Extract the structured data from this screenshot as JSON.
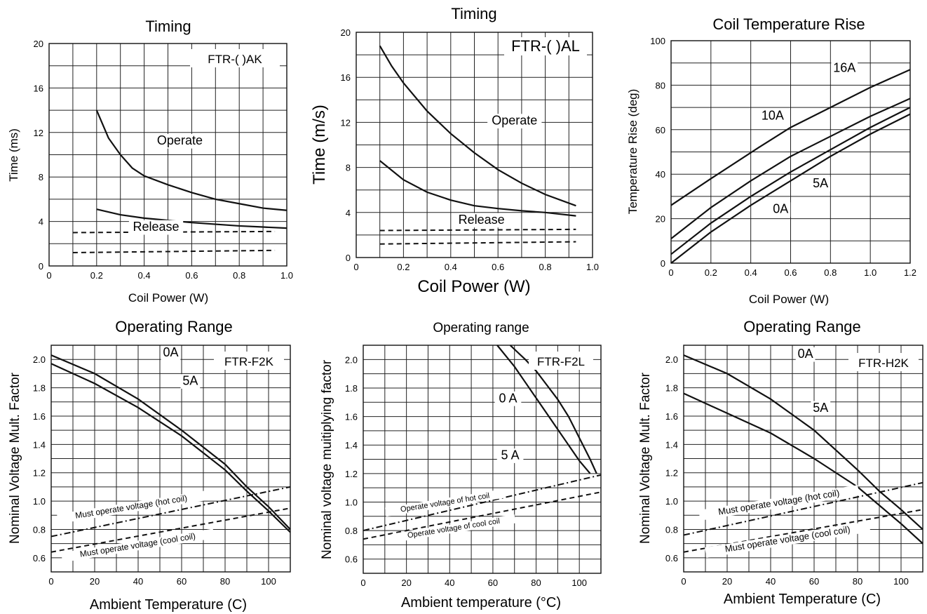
{
  "charts": [
    {
      "type": "line",
      "title": "Timing",
      "xlabel": "Coil Power (W)",
      "ylabel": "Time (ms)",
      "xlim": [
        0,
        1.0
      ],
      "ylim": [
        0,
        20
      ],
      "xticks": [
        "0",
        "0.2",
        "0.4",
        "0.6",
        "0.8",
        "1.0"
      ],
      "yticks": [
        "0",
        "4",
        "8",
        "12",
        "16",
        "20"
      ],
      "model": "FTR-( )AK",
      "grid": true,
      "series": [
        {
          "style": "solid",
          "x": [
            0.2,
            0.25,
            0.3,
            0.35,
            0.4,
            0.5,
            0.6,
            0.7,
            0.8,
            0.9,
            1.0
          ],
          "y": [
            14,
            11.5,
            10,
            8.8,
            8.1,
            7.3,
            6.6,
            6.0,
            5.6,
            5.2,
            5.0
          ]
        },
        {
          "style": "solid",
          "x": [
            0.2,
            0.3,
            0.4,
            0.5,
            0.6,
            0.7,
            0.8,
            0.9,
            1.0
          ],
          "y": [
            5.1,
            4.6,
            4.3,
            4.1,
            3.9,
            3.75,
            3.6,
            3.5,
            3.4
          ]
        },
        {
          "style": "dashed",
          "x": [
            0.1,
            0.95
          ],
          "y": [
            3.0,
            3.1
          ]
        },
        {
          "style": "dashed",
          "x": [
            0.1,
            0.95
          ],
          "y": [
            1.2,
            1.4
          ]
        }
      ],
      "labels": [
        {
          "id": "operate",
          "text": "Operate",
          "x": 0.55,
          "y": 10.9
        },
        {
          "id": "release",
          "text": "Release",
          "x": 0.45,
          "y": 3.15
        }
      ]
    },
    {
      "type": "line",
      "title": "Timing",
      "xlabel": "Coil Power (W)",
      "ylabel": "Time (m/s)",
      "xlim": [
        0,
        1.0
      ],
      "ylim": [
        0,
        20
      ],
      "xticks": [
        "0",
        "0.2",
        "0.4",
        "0.6",
        "0.8",
        "1.0"
      ],
      "yticks": [
        "0",
        "4",
        "8",
        "12",
        "16",
        "20"
      ],
      "model": "FTR-( )AL",
      "grid": true,
      "series": [
        {
          "style": "solid",
          "x": [
            0.1,
            0.15,
            0.2,
            0.3,
            0.4,
            0.5,
            0.6,
            0.7,
            0.8,
            0.93
          ],
          "y": [
            18.8,
            17.0,
            15.5,
            13.0,
            11.0,
            9.3,
            7.8,
            6.6,
            5.6,
            4.6
          ]
        },
        {
          "style": "solid",
          "x": [
            0.1,
            0.2,
            0.3,
            0.4,
            0.5,
            0.6,
            0.7,
            0.8,
            0.93
          ],
          "y": [
            8.6,
            6.9,
            5.8,
            5.1,
            4.6,
            4.35,
            4.15,
            4.0,
            3.7
          ]
        },
        {
          "style": "dashed",
          "x": [
            0.1,
            0.93
          ],
          "y": [
            2.4,
            2.5
          ]
        },
        {
          "style": "dashed",
          "x": [
            0.1,
            0.93
          ],
          "y": [
            1.2,
            1.4
          ]
        }
      ],
      "labels": [
        {
          "id": "operate",
          "text": "Operate",
          "x": 0.67,
          "y": 11.8
        },
        {
          "id": "release",
          "text": "Release",
          "x": 0.53,
          "y": 3.0
        }
      ]
    },
    {
      "type": "line",
      "title": "Coil Temperature Rise",
      "xlabel": "Coil Power (W)",
      "ylabel": "Temperature Rise (deg)",
      "xlim": [
        0,
        1.2
      ],
      "ylim": [
        0,
        100
      ],
      "xticks": [
        "0",
        "0.2",
        "0.4",
        "0.6",
        "0.8",
        "1.0",
        "1.2"
      ],
      "yticks": [
        "0",
        "20",
        "40",
        "60",
        "80",
        "100"
      ],
      "grid": true,
      "series": [
        {
          "name": "16A",
          "style": "solid",
          "x": [
            0,
            0.2,
            0.44,
            0.6,
            0.8,
            1.0,
            1.2
          ],
          "y": [
            26,
            38,
            52,
            61,
            70,
            79,
            87
          ]
        },
        {
          "name": "10A",
          "style": "solid",
          "x": [
            0,
            0.2,
            0.4,
            0.6,
            0.8,
            1.0,
            1.2
          ],
          "y": [
            11,
            25,
            37,
            48,
            57,
            66,
            74
          ]
        },
        {
          "name": "5A",
          "style": "solid",
          "x": [
            0,
            0.2,
            0.4,
            0.6,
            0.8,
            1.0,
            1.2
          ],
          "y": [
            4,
            18,
            30,
            41,
            51,
            61,
            70
          ]
        },
        {
          "name": "0A",
          "style": "solid",
          "x": [
            0,
            0.2,
            0.4,
            0.6,
            0.8,
            1.0,
            1.2
          ],
          "y": [
            0,
            14,
            26,
            37,
            48,
            58,
            67
          ]
        }
      ],
      "labels": [
        {
          "id": "16a",
          "text": "16A",
          "x": 0.87,
          "y": 86
        },
        {
          "id": "10a",
          "text": "10A",
          "x": 0.51,
          "y": 64.5
        },
        {
          "id": "5a",
          "text": "5A",
          "x": 0.75,
          "y": 34
        },
        {
          "id": "0a",
          "text": "0A",
          "x": 0.55,
          "y": 22.5
        }
      ]
    },
    {
      "type": "line",
      "title": "Operating Range",
      "xlabel": "Ambient Temperature (C)",
      "ylabel": "Nominal Voltage Mult. Factor",
      "xlim": [
        0,
        110
      ],
      "ylim": [
        0.5,
        2.1
      ],
      "xticks": [
        "0",
        "20",
        "40",
        "60",
        "80",
        "100"
      ],
      "yticks": [
        "0.6",
        "0.8",
        "1.0",
        "1.2",
        "1.4",
        "1.6",
        "1.8",
        "2.0"
      ],
      "model": "FTR-F2K",
      "grid": true,
      "series": [
        {
          "name": "0A",
          "style": "solid",
          "x": [
            0,
            20,
            40,
            60,
            80,
            90,
            100,
            110
          ],
          "y": [
            2.03,
            1.9,
            1.72,
            1.5,
            1.26,
            1.1,
            0.96,
            0.8
          ]
        },
        {
          "name": "5A",
          "style": "solid",
          "x": [
            0,
            20,
            40,
            60,
            80,
            90,
            100,
            110
          ],
          "y": [
            1.97,
            1.83,
            1.66,
            1.46,
            1.22,
            1.07,
            0.93,
            0.78
          ]
        },
        {
          "name": "Must operate voltage (hot coil)",
          "style": "dashdot",
          "x": [
            0,
            110
          ],
          "y": [
            0.75,
            1.1
          ]
        },
        {
          "name": "Must operate voltage (cool coil)",
          "style": "dashed",
          "x": [
            0,
            110
          ],
          "y": [
            0.64,
            0.95
          ]
        }
      ],
      "labels": [
        {
          "id": "0a",
          "text": "0A",
          "x": 55,
          "y": 2.02
        },
        {
          "id": "5a",
          "text": "5A",
          "x": 64,
          "y": 1.82
        },
        {
          "id": "hot",
          "text": "Must operate voltage (hot coil)",
          "x": 37,
          "y": 0.94,
          "rotate": -9,
          "size": 12
        },
        {
          "id": "cool",
          "text": "Must operate voltage (cool coil)",
          "x": 40,
          "y": 0.67,
          "rotate": -9,
          "size": 12
        }
      ]
    },
    {
      "type": "line",
      "title": "Operating range",
      "xlabel": "Ambient temperature (°C)",
      "ylabel": "Nominal voltage muitiplying factor",
      "xlim": [
        0,
        110
      ],
      "ylim": [
        0.5,
        2.1
      ],
      "xticks": [
        "0",
        "20",
        "40",
        "60",
        "80",
        "100"
      ],
      "yticks": [
        "0.6",
        "0.8",
        "1.0",
        "1.2",
        "1.4",
        "1.6",
        "1.8",
        "2.0"
      ],
      "model": "FTR-F2L",
      "grid": true,
      "series": [
        {
          "name": "0 A",
          "style": "solid",
          "x": [
            68,
            75,
            80,
            85,
            90,
            95,
            100,
            105,
            108
          ],
          "y": [
            2.1,
            2.0,
            1.92,
            1.82,
            1.72,
            1.6,
            1.45,
            1.3,
            1.2
          ]
        },
        {
          "name": "5 A",
          "style": "solid",
          "x": [
            62,
            70,
            75,
            80,
            85,
            90,
            95,
            100,
            105
          ],
          "y": [
            2.1,
            1.95,
            1.84,
            1.73,
            1.62,
            1.51,
            1.4,
            1.29,
            1.2
          ]
        },
        {
          "name": "Operate voltage of hot coil",
          "style": "dashdot",
          "x": [
            0,
            110
          ],
          "y": [
            0.8,
            1.19
          ]
        },
        {
          "name": "Operate voltage of cool coil",
          "style": "dashed",
          "x": [
            0,
            110
          ],
          "y": [
            0.74,
            1.07
          ]
        }
      ],
      "labels": [
        {
          "id": "0a",
          "text": "0 A",
          "x": 67,
          "y": 1.7
        },
        {
          "id": "5a",
          "text": "5 A",
          "x": 68,
          "y": 1.3
        },
        {
          "id": "hot",
          "text": "Operate voltage of hot coil",
          "x": 38,
          "y": 0.98,
          "rotate": -9,
          "size": 11
        },
        {
          "id": "cool",
          "text": "Operate voltage of cool coil",
          "x": 42,
          "y": 0.8,
          "rotate": -9,
          "size": 11
        }
      ]
    },
    {
      "type": "line",
      "title": "Operating Range",
      "xlabel": "Ambient Temperature (C)",
      "ylabel": "Nominal Voltage Mult. Factor",
      "xlim": [
        0,
        110
      ],
      "ylim": [
        0.5,
        2.1
      ],
      "xticks": [
        "0",
        "20",
        "40",
        "60",
        "80",
        "100"
      ],
      "yticks": [
        "0.6",
        "0.8",
        "1.0",
        "1.2",
        "1.4",
        "1.6",
        "1.8",
        "2.0"
      ],
      "model": "FTR-H2K",
      "grid": true,
      "series": [
        {
          "name": "0A",
          "style": "solid",
          "x": [
            0,
            20,
            40,
            60,
            80,
            90,
            100,
            110
          ],
          "y": [
            2.03,
            1.9,
            1.72,
            1.5,
            1.22,
            1.07,
            0.94,
            0.8
          ]
        },
        {
          "name": "5A",
          "style": "solid",
          "x": [
            0,
            20,
            40,
            60,
            80,
            90,
            100,
            110
          ],
          "y": [
            1.76,
            1.62,
            1.48,
            1.3,
            1.1,
            0.97,
            0.84,
            0.7
          ]
        },
        {
          "name": "Must operate voltage (hot coil)",
          "style": "dashdot",
          "x": [
            0,
            110
          ],
          "y": [
            0.76,
            1.13
          ]
        },
        {
          "name": "Must operate voltage (cool coil)",
          "style": "dashed",
          "x": [
            0,
            110
          ],
          "y": [
            0.64,
            0.94
          ]
        }
      ],
      "labels": [
        {
          "id": "0a",
          "text": "0A",
          "x": 56,
          "y": 2.01
        },
        {
          "id": "5a",
          "text": "5A",
          "x": 63,
          "y": 1.63
        },
        {
          "id": "hot",
          "text": "Must operate voltage (hot coil)",
          "x": 44,
          "y": 0.97,
          "rotate": -9,
          "size": 13
        },
        {
          "id": "cool",
          "text": "Must operate voltage (cool coil)",
          "x": 48,
          "y": 0.71,
          "rotate": -9,
          "size": 13
        }
      ]
    }
  ]
}
